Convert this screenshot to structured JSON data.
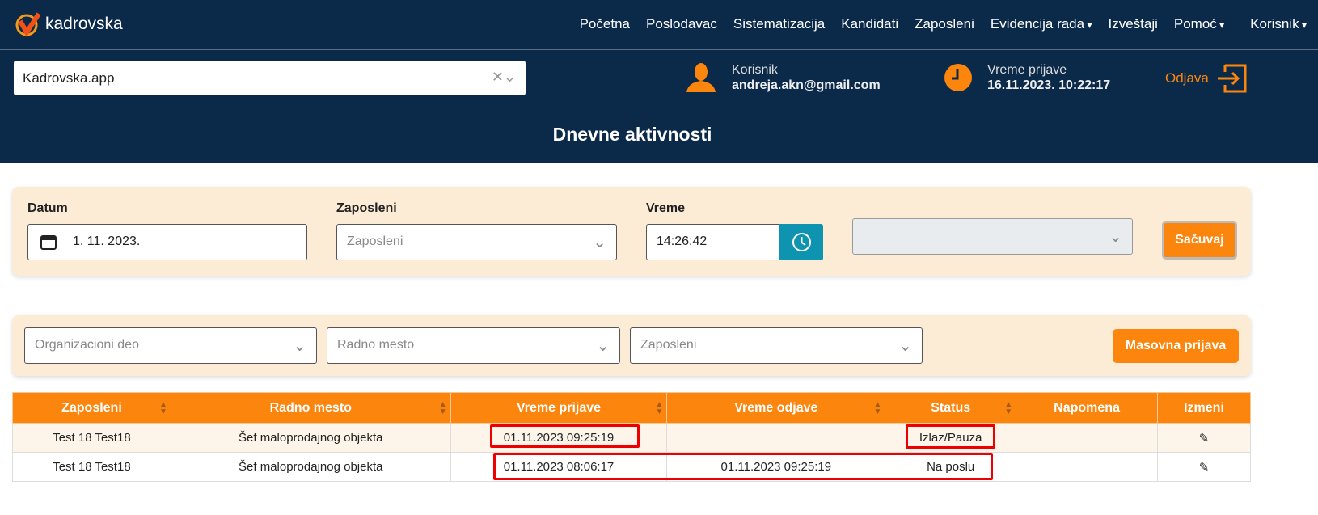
{
  "brand": "kadrovska",
  "nav": [
    "Početna",
    "Poslodavac",
    "Sistematizacija",
    "Kandidati",
    "Zaposleni",
    "Evidencija rada",
    "Izveštaji",
    "Pomoć",
    "Korisnik"
  ],
  "company_select": "Kadrovska.app",
  "user": {
    "label": "Korisnik",
    "email": "andreja.akn@gmail.com"
  },
  "login_time": {
    "label": "Vreme prijave",
    "value": "16.11.2023. 10:22:17"
  },
  "logout": "Odjava",
  "page_title": "Dnevne aktivnosti",
  "form": {
    "datum_label": "Datum",
    "datum": "1. 11. 2023.",
    "zaposleni_label": "Zaposleni",
    "zaposleni_placeholder": "Zaposleni",
    "vreme_label": "Vreme",
    "vreme": "14:26:42",
    "save": "Sačuvaj"
  },
  "filters": {
    "org": "Organizacioni deo",
    "radno": "Radno mesto",
    "zap": "Zaposleni",
    "mass": "Masovna prijava"
  },
  "table": {
    "headers": [
      "Zaposleni",
      "Radno mesto",
      "Vreme prijave",
      "Vreme odjave",
      "Status",
      "Napomena",
      "Izmeni"
    ],
    "rows": [
      [
        "Test 18 Test18",
        "Šef maloprodajnog objekta",
        "01.11.2023 09:25:19",
        "",
        "Izlaz/Pauza",
        ""
      ],
      [
        "Test 18 Test18",
        "Šef maloprodajnog objekta",
        "01.11.2023 08:06:17",
        "01.11.2023 09:25:19",
        "Na poslu",
        ""
      ]
    ]
  },
  "colors": {
    "navy": "#0b2a4a",
    "orange": "#fb850d",
    "highlight": "#e00000"
  }
}
